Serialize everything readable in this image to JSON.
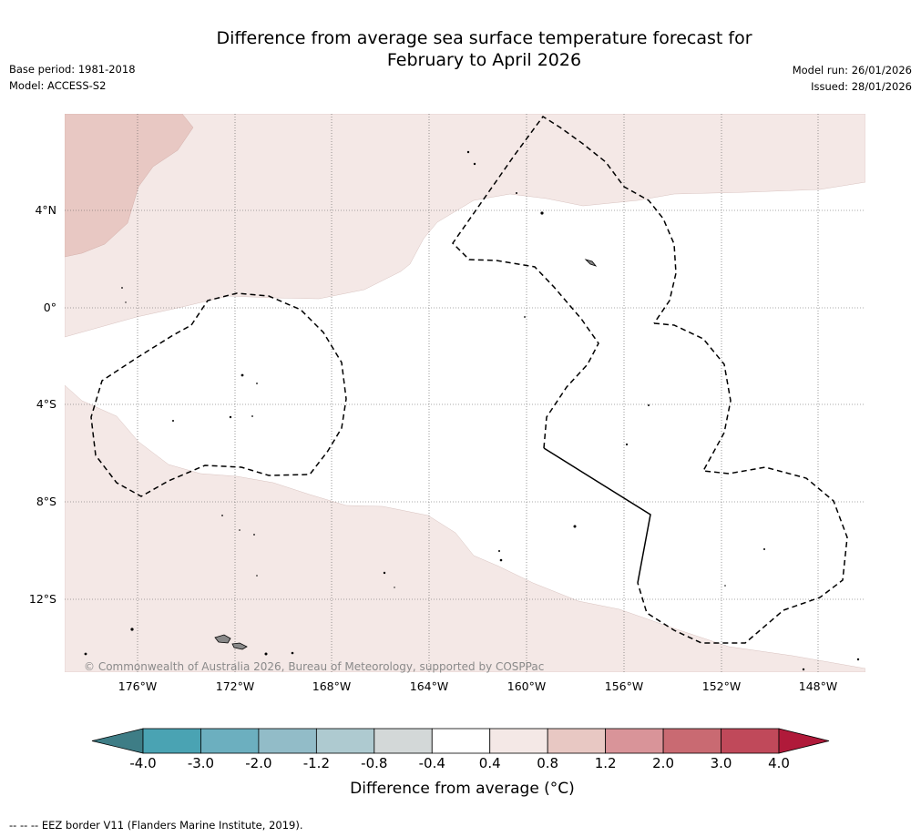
{
  "title": {
    "line1": "Difference from average sea surface temperature forecast for",
    "line2": "February to April 2026"
  },
  "meta": {
    "base_period": "Base period: 1981-2018",
    "model": "Model: ACCESS-S2",
    "model_run": "Model run: 26/01/2026",
    "issued": "Issued: 28/01/2026"
  },
  "map": {
    "lat_labels": [
      "4°N",
      "0°",
      "4°S",
      "8°S",
      "12°S"
    ],
    "lon_labels": [
      "176°W",
      "172°W",
      "168°W",
      "164°W",
      "160°W",
      "156°W",
      "152°W",
      "148°W"
    ],
    "copyright": "© Commonwealth of Australia 2026, Bureau of Meteorology, supported by COSPPac",
    "colors": {
      "band_0_4_to_0_8": "#f4e8e6",
      "band_0_8_to_1_2": "#e8c8c3",
      "land": "#888888",
      "eez_line": "#000000",
      "gridline": "#555555"
    }
  },
  "colorbar": {
    "ticks": [
      "-4.0",
      "-3.0",
      "-2.0",
      "-1.2",
      "-0.8",
      "-0.4",
      "0.4",
      "0.8",
      "1.2",
      "2.0",
      "3.0",
      "4.0"
    ],
    "colors": [
      "#3e7d86",
      "#4aa3b3",
      "#6cafbf",
      "#92bcc8",
      "#aecad0",
      "#d3d8d8",
      "#ffffff",
      "#f4e8e6",
      "#e8c8c3",
      "#d99499",
      "#c96a72",
      "#c0495a",
      "#b01a3a"
    ],
    "label": "Difference from average (°C)"
  },
  "footer": {
    "eez_legend": "-- -- -- EEZ border V11 (Flanders Marine Institute, 2019)."
  }
}
